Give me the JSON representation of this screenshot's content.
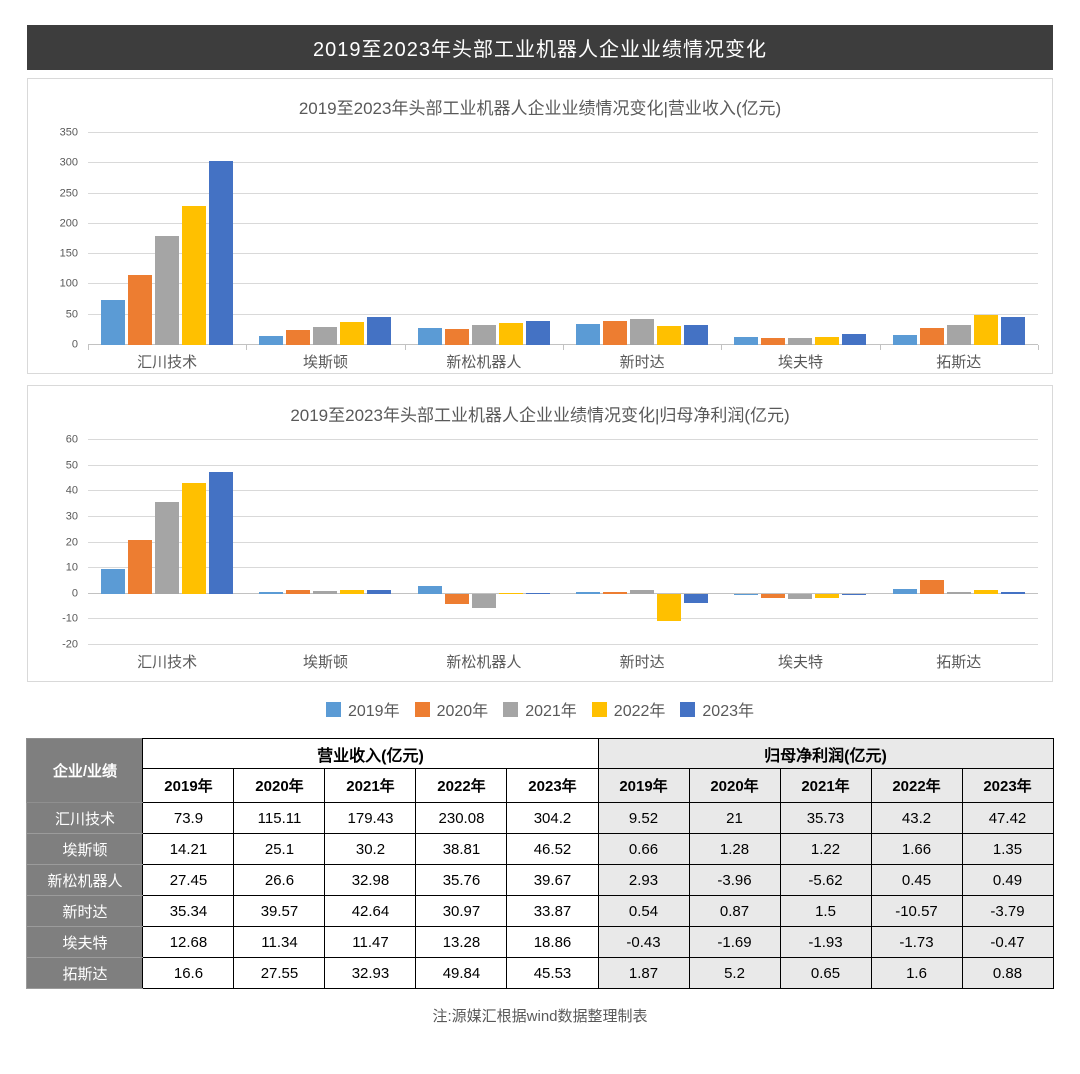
{
  "page": {
    "banner_title": "2019至2023年头部工业机器人企业业绩情况变化",
    "note": "注:源媒汇根据wind数据整理制表",
    "background_color": "#ffffff",
    "banner_color": "#3d3d3d"
  },
  "legend": {
    "position": "bottom-center",
    "items": [
      {
        "label": "2019年",
        "color": "#5B9BD5"
      },
      {
        "label": "2020年",
        "color": "#ED7D31"
      },
      {
        "label": "2021年",
        "color": "#A5A5A5"
      },
      {
        "label": "2022年",
        "color": "#FFC000"
      },
      {
        "label": "2023年",
        "color": "#4472C4"
      }
    ]
  },
  "chart_data": [
    {
      "type": "bar",
      "title": "2019至2023年头部工业机器人企业业绩情况变化|营业收入(亿元)",
      "categories": [
        "汇川技术",
        "埃斯顿",
        "新松机器人",
        "新时达",
        "埃夫特",
        "拓斯达"
      ],
      "series": [
        {
          "name": "2019年",
          "color": "#5B9BD5",
          "values": [
            73.9,
            14.21,
            27.45,
            35.34,
            12.68,
            16.6
          ]
        },
        {
          "name": "2020年",
          "color": "#ED7D31",
          "values": [
            115.11,
            25.1,
            26.6,
            39.57,
            11.34,
            27.55
          ]
        },
        {
          "name": "2021年",
          "color": "#A5A5A5",
          "values": [
            179.43,
            30.2,
            32.98,
            42.64,
            11.47,
            32.93
          ]
        },
        {
          "name": "2022年",
          "color": "#FFC000",
          "values": [
            230.08,
            38.81,
            35.76,
            30.97,
            13.28,
            49.84
          ]
        },
        {
          "name": "2023年",
          "color": "#4472C4",
          "values": [
            304.2,
            46.52,
            39.67,
            33.87,
            18.86,
            45.53
          ]
        }
      ],
      "xlabel": "",
      "ylabel": "",
      "ylim": [
        0,
        350
      ],
      "ytick_step": 50,
      "grid": true,
      "axis_ticks": true,
      "legend_position": "shared-bottom"
    },
    {
      "type": "bar",
      "title": "2019至2023年头部工业机器人企业业绩情况变化|归母净利润(亿元)",
      "categories": [
        "汇川技术",
        "埃斯顿",
        "新松机器人",
        "新时达",
        "埃夫特",
        "拓斯达"
      ],
      "series": [
        {
          "name": "2019年",
          "color": "#5B9BD5",
          "values": [
            9.52,
            0.66,
            2.93,
            0.54,
            -0.43,
            1.87
          ]
        },
        {
          "name": "2020年",
          "color": "#ED7D31",
          "values": [
            21,
            1.28,
            -3.96,
            0.87,
            -1.69,
            5.2
          ]
        },
        {
          "name": "2021年",
          "color": "#A5A5A5",
          "values": [
            35.73,
            1.22,
            -5.62,
            1.5,
            -1.93,
            0.65
          ]
        },
        {
          "name": "2022年",
          "color": "#FFC000",
          "values": [
            43.2,
            1.66,
            0.45,
            -10.57,
            -1.73,
            1.6
          ]
        },
        {
          "name": "2023年",
          "color": "#4472C4",
          "values": [
            47.42,
            1.35,
            0.49,
            -3.79,
            -0.47,
            0.88
          ]
        }
      ],
      "xlabel": "",
      "ylabel": "",
      "ylim": [
        -20,
        60
      ],
      "ytick_step": 10,
      "grid": true,
      "axis_ticks": false,
      "legend_position": "shared-bottom"
    }
  ],
  "table": {
    "corner_label": "企业/业绩",
    "column_groups": [
      {
        "label": "营业收入(亿元)",
        "years": [
          "2019年",
          "2020年",
          "2021年",
          "2022年",
          "2023年"
        ],
        "shaded": false
      },
      {
        "label": "归母净利润(亿元)",
        "years": [
          "2019年",
          "2020年",
          "2021年",
          "2022年",
          "2023年"
        ],
        "shaded": true
      }
    ],
    "rows": [
      {
        "company": "汇川技术",
        "revenue": [
          "73.9",
          "115.11",
          "179.43",
          "230.08",
          "304.2"
        ],
        "profit": [
          "9.52",
          "21",
          "35.73",
          "43.2",
          "47.42"
        ]
      },
      {
        "company": "埃斯顿",
        "revenue": [
          "14.21",
          "25.1",
          "30.2",
          "38.81",
          "46.52"
        ],
        "profit": [
          "0.66",
          "1.28",
          "1.22",
          "1.66",
          "1.35"
        ]
      },
      {
        "company": "新松机器人",
        "revenue": [
          "27.45",
          "26.6",
          "32.98",
          "35.76",
          "39.67"
        ],
        "profit": [
          "2.93",
          "-3.96",
          "-5.62",
          "0.45",
          "0.49"
        ]
      },
      {
        "company": "新时达",
        "revenue": [
          "35.34",
          "39.57",
          "42.64",
          "30.97",
          "33.87"
        ],
        "profit": [
          "0.54",
          "0.87",
          "1.5",
          "-10.57",
          "-3.79"
        ]
      },
      {
        "company": "埃夫特",
        "revenue": [
          "12.68",
          "11.34",
          "11.47",
          "13.28",
          "18.86"
        ],
        "profit": [
          "-0.43",
          "-1.69",
          "-1.93",
          "-1.73",
          "-0.47"
        ]
      },
      {
        "company": "拓斯达",
        "revenue": [
          "16.6",
          "27.55",
          "32.93",
          "49.84",
          "45.53"
        ],
        "profit": [
          "1.87",
          "5.2",
          "0.65",
          "1.6",
          "0.88"
        ]
      }
    ]
  }
}
